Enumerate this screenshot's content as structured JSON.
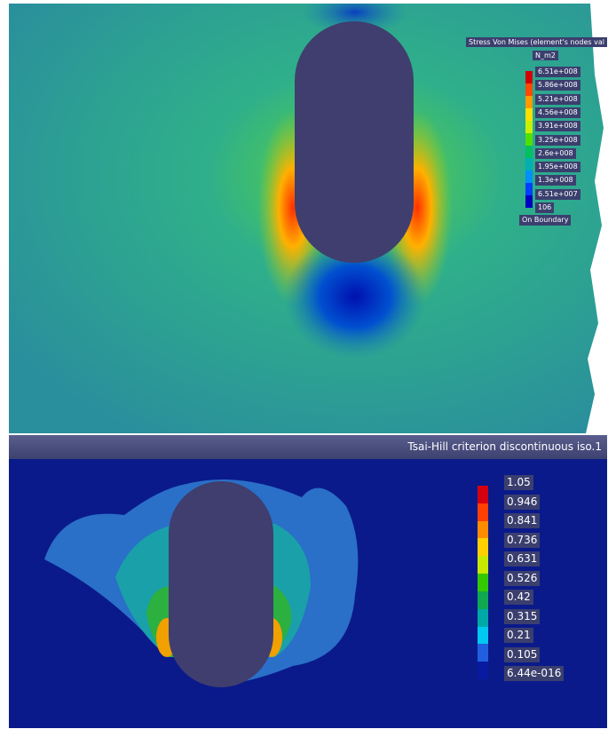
{
  "top_panel": {
    "title": "Stress Von Mises (element's nodes val",
    "unit": "N_m2",
    "ticks": [
      "6.51e+008",
      "5.86e+008",
      "5.21e+008",
      "4.56e+008",
      "3.91e+008",
      "3.25e+008",
      "2.6e+008",
      "1.95e+008",
      "1.3e+008",
      "6.51e+007",
      "106"
    ],
    "boundary_label": "On Boundary",
    "colors": [
      "#d40000",
      "#ff4a00",
      "#ff9a00",
      "#ffe000",
      "#c8f000",
      "#50e000",
      "#00c060",
      "#00b0b0",
      "#0090ff",
      "#0040ff",
      "#0000c0"
    ]
  },
  "bottom_panel": {
    "title": "Tsai-Hill criterion discontinuous iso.1",
    "ticks": [
      "1.05",
      "0.946",
      "0.841",
      "0.736",
      "0.631",
      "0.526",
      "0.42",
      "0.315",
      "0.21",
      "0.105",
      "6.44e-016"
    ],
    "colors": [
      "#d40010",
      "#ff4000",
      "#ff8c00",
      "#ffd000",
      "#c8e800",
      "#34c800",
      "#10a850",
      "#00a8a8",
      "#00c8f0",
      "#2060e0",
      "#0a1aa0"
    ]
  }
}
